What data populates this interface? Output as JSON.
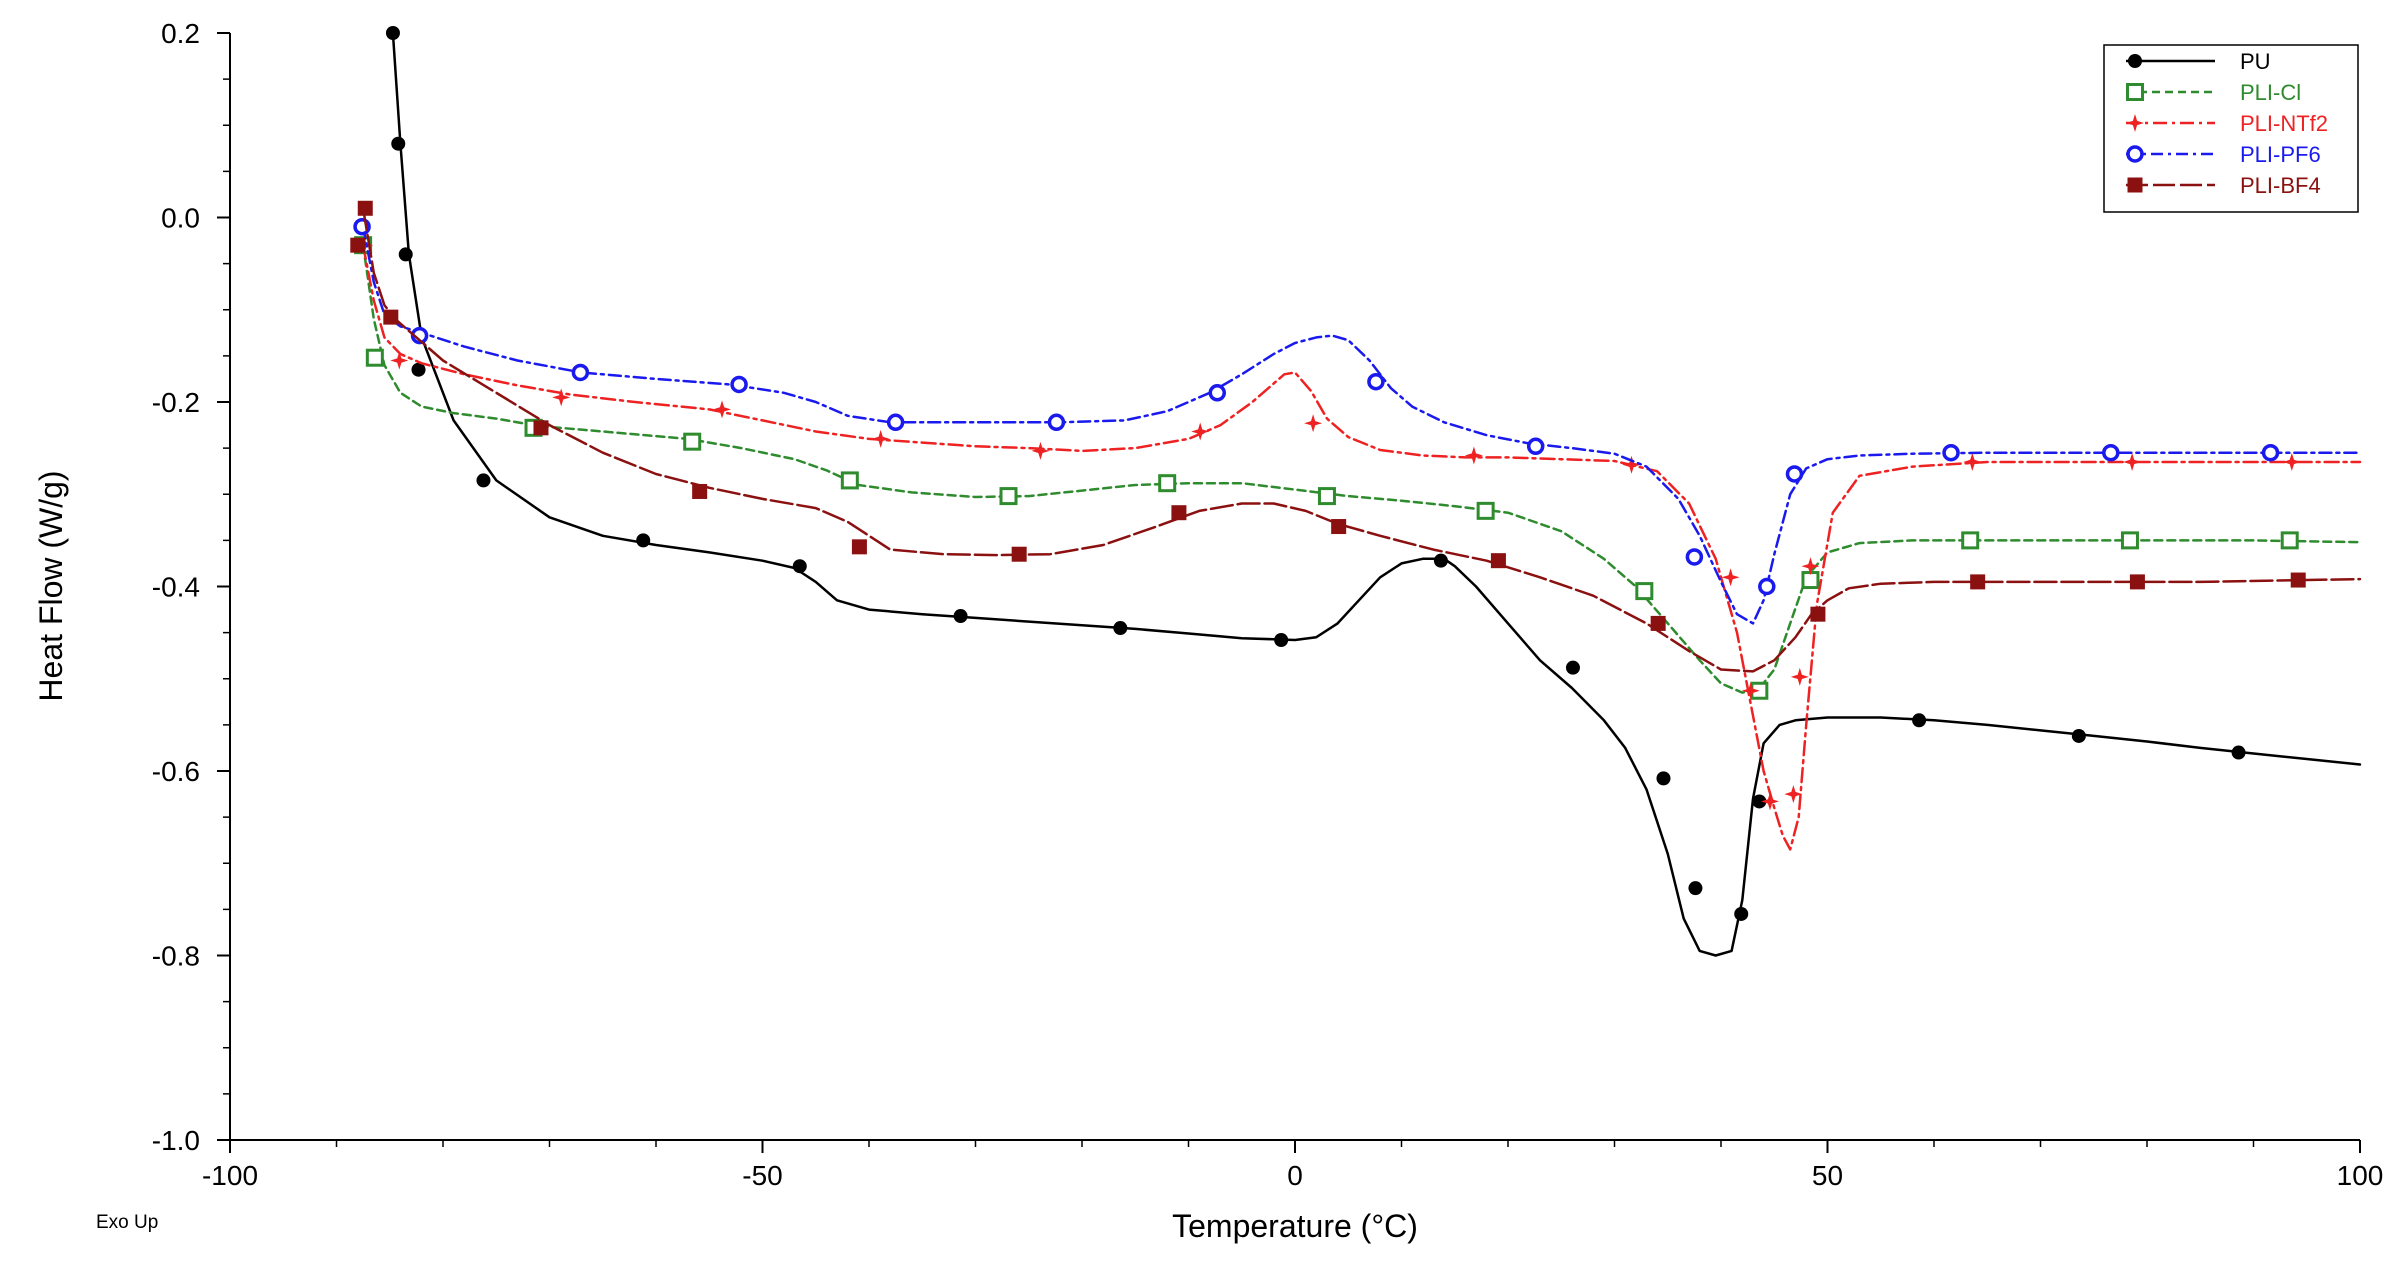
{
  "chart_data": {
    "type": "line",
    "title": "",
    "xlabel": "Temperature (°C)",
    "ylabel": "Heat Flow (W/g)",
    "note": "Exo Up",
    "xlim": [
      -100,
      100
    ],
    "ylim": [
      -1.0,
      0.2
    ],
    "xticks": [
      -100,
      -50,
      0,
      50,
      100
    ],
    "xtick_labels": [
      "-100",
      "-50",
      "0",
      "50",
      "100"
    ],
    "yticks": [
      0.2,
      0.0,
      -0.2,
      -0.4,
      -0.6,
      -0.8,
      -1.0
    ],
    "ytick_labels": [
      "0.2",
      "0.0",
      "-0.2",
      "-0.4",
      "-0.6",
      "-0.8",
      "-1.0"
    ],
    "legend_position": "top-right",
    "series": [
      {
        "name": "PU",
        "color": "#000000",
        "dash": "solid",
        "marker": "filled-circle",
        "x": [
          -84.7,
          -84.0,
          -83.2,
          -82.0,
          -79.0,
          -75.0,
          -70.0,
          -65.0,
          -60.0,
          -55.0,
          -50.0,
          -47.0,
          -45.0,
          -43.0,
          -40.0,
          -35.0,
          -30.0,
          -25.0,
          -20.0,
          -15.0,
          -10.0,
          -5.0,
          0.0,
          2.0,
          4.0,
          6.0,
          8.0,
          10.0,
          12.0,
          14.0,
          15.0,
          17.0,
          20.0,
          23.0,
          26.0,
          29.0,
          31.0,
          33.0,
          35.0,
          36.5,
          38.0,
          39.5,
          41.0,
          42.0,
          43.0,
          44.0,
          45.5,
          47.0,
          50.0,
          55.0,
          60.0,
          65.0,
          70.0,
          75.0,
          80.0,
          85.0,
          90.0,
          95.0,
          100.0
        ],
        "y": [
          0.2,
          0.08,
          -0.04,
          -0.13,
          -0.22,
          -0.285,
          -0.325,
          -0.345,
          -0.355,
          -0.363,
          -0.372,
          -0.38,
          -0.395,
          -0.415,
          -0.425,
          -0.43,
          -0.434,
          -0.438,
          -0.442,
          -0.446,
          -0.451,
          -0.456,
          -0.458,
          -0.455,
          -0.44,
          -0.415,
          -0.39,
          -0.375,
          -0.37,
          -0.37,
          -0.378,
          -0.4,
          -0.44,
          -0.48,
          -0.51,
          -0.545,
          -0.575,
          -0.62,
          -0.69,
          -0.76,
          -0.795,
          -0.8,
          -0.795,
          -0.74,
          -0.63,
          -0.57,
          -0.55,
          -0.545,
          -0.542,
          -0.542,
          -0.545,
          -0.55,
          -0.556,
          -0.562,
          -0.568,
          -0.575,
          -0.581,
          -0.587,
          -0.593
        ],
        "marker_x": [
          -84.7,
          -84.2,
          -83.5,
          -82.3,
          -76.2,
          -61.2,
          -46.5,
          -31.4,
          -16.4,
          -1.3,
          13.7,
          26.1,
          34.6,
          37.6,
          41.9,
          43.6,
          58.6,
          73.6,
          88.6
        ],
        "marker_y": [
          0.2,
          0.08,
          -0.04,
          -0.165,
          -0.285,
          -0.35,
          -0.378,
          -0.432,
          -0.445,
          -0.458,
          -0.372,
          -0.488,
          -0.608,
          -0.727,
          -0.755,
          -0.633,
          -0.545,
          -0.562,
          -0.58
        ]
      },
      {
        "name": "PLI-Cl",
        "color": "#2e8b2e",
        "dash": "8 5",
        "marker": "open-square",
        "x": [
          -87.5,
          -86.5,
          -85.5,
          -84.0,
          -82.0,
          -79.0,
          -75.0,
          -71.0,
          -65.0,
          -57.0,
          -52.0,
          -47.0,
          -44.0,
          -41.0,
          -36.0,
          -30.0,
          -25.0,
          -20.0,
          -15.0,
          -10.0,
          -5.0,
          0.0,
          5.0,
          10.0,
          15.0,
          20.0,
          25.0,
          29.0,
          32.0,
          35.0,
          38.0,
          40.0,
          42.0,
          43.5,
          45.0,
          46.5,
          48.0,
          50.0,
          53.0,
          58.0,
          65.0,
          70.0,
          80.0,
          90.0,
          100.0
        ],
        "y": [
          -0.03,
          -0.11,
          -0.16,
          -0.19,
          -0.205,
          -0.212,
          -0.218,
          -0.226,
          -0.232,
          -0.24,
          -0.25,
          -0.262,
          -0.274,
          -0.29,
          -0.298,
          -0.303,
          -0.302,
          -0.296,
          -0.29,
          -0.288,
          -0.288,
          -0.295,
          -0.302,
          -0.307,
          -0.313,
          -0.32,
          -0.34,
          -0.37,
          -0.4,
          -0.44,
          -0.48,
          -0.505,
          -0.515,
          -0.512,
          -0.49,
          -0.44,
          -0.39,
          -0.363,
          -0.353,
          -0.35,
          -0.35,
          -0.35,
          -0.35,
          -0.35,
          -0.352
        ],
        "marker_x": [
          -87.5,
          -86.4,
          -71.5,
          -56.6,
          -41.8,
          -26.9,
          -12.0,
          3.0,
          17.9,
          32.8,
          43.6,
          48.4,
          63.4,
          78.4,
          93.4
        ],
        "marker_y": [
          -0.03,
          -0.152,
          -0.228,
          -0.243,
          -0.285,
          -0.302,
          -0.288,
          -0.302,
          -0.318,
          -0.405,
          -0.513,
          -0.393,
          -0.35,
          -0.35,
          -0.35
        ]
      },
      {
        "name": "PLI-NTf2",
        "color": "#ee2222",
        "dash": "14 5 3 5",
        "marker": "star",
        "x": [
          -87.5,
          -86.5,
          -85.5,
          -84.0,
          -82.0,
          -78.0,
          -73.0,
          -68.0,
          -62.0,
          -55.0,
          -50.0,
          -45.0,
          -40.0,
          -35.0,
          -30.0,
          -25.0,
          -20.0,
          -15.0,
          -10.0,
          -7.0,
          -4.0,
          -2.0,
          -1.0,
          0.0,
          1.5,
          3.0,
          5.0,
          8.0,
          12.0,
          16.0,
          20.0,
          25.0,
          30.0,
          34.0,
          37.0,
          39.5,
          41.5,
          43.0,
          44.0,
          45.0,
          45.8,
          46.5,
          47.3,
          48.0,
          49.0,
          50.5,
          53.0,
          58.0,
          65.0,
          75.0,
          85.0,
          95.0,
          100.0
        ],
        "y": [
          -0.03,
          -0.09,
          -0.13,
          -0.148,
          -0.158,
          -0.17,
          -0.182,
          -0.192,
          -0.2,
          -0.208,
          -0.22,
          -0.232,
          -0.24,
          -0.244,
          -0.248,
          -0.25,
          -0.253,
          -0.25,
          -0.24,
          -0.225,
          -0.2,
          -0.18,
          -0.17,
          -0.168,
          -0.188,
          -0.218,
          -0.238,
          -0.252,
          -0.258,
          -0.26,
          -0.26,
          -0.262,
          -0.264,
          -0.275,
          -0.31,
          -0.37,
          -0.45,
          -0.54,
          -0.6,
          -0.64,
          -0.67,
          -0.685,
          -0.65,
          -0.55,
          -0.42,
          -0.32,
          -0.28,
          -0.27,
          -0.265,
          -0.265,
          -0.265,
          -0.265,
          -0.265
        ],
        "marker_x": [
          -87.4,
          -84.1,
          -68.9,
          -53.8,
          -38.9,
          -23.9,
          -8.9,
          1.7,
          16.8,
          31.6,
          40.9,
          42.8,
          44.6,
          46.8,
          47.4,
          48.4,
          63.6,
          78.6,
          93.6
        ],
        "marker_y": [
          -0.03,
          -0.155,
          -0.195,
          -0.208,
          -0.24,
          -0.253,
          -0.232,
          -0.223,
          -0.258,
          -0.268,
          -0.39,
          -0.513,
          -0.633,
          -0.625,
          -0.498,
          -0.378,
          -0.265,
          -0.265,
          -0.265
        ]
      },
      {
        "name": "PLI-PF6",
        "color": "#1a1aee",
        "dash": "12 5 3 5",
        "marker": "open-circle",
        "x": [
          -87.5,
          -86.5,
          -85.5,
          -84.0,
          -82.0,
          -78.0,
          -73.0,
          -67.0,
          -60.0,
          -53.0,
          -48.0,
          -45.0,
          -42.0,
          -38.0,
          -33.0,
          -28.0,
          -22.0,
          -16.0,
          -12.0,
          -8.0,
          -5.0,
          -2.0,
          0.0,
          2.0,
          3.5,
          5.0,
          7.0,
          9.0,
          11.0,
          14.0,
          18.0,
          22.0,
          26.0,
          30.0,
          33.0,
          36.0,
          38.0,
          40.0,
          41.5,
          43.0,
          44.0,
          45.0,
          46.5,
          48.0,
          50.0,
          53.0,
          58.0,
          65.0,
          75.0,
          85.0,
          95.0,
          100.0
        ],
        "y": [
          -0.01,
          -0.07,
          -0.105,
          -0.118,
          -0.125,
          -0.14,
          -0.155,
          -0.168,
          -0.175,
          -0.181,
          -0.19,
          -0.2,
          -0.215,
          -0.222,
          -0.222,
          -0.222,
          -0.222,
          -0.22,
          -0.21,
          -0.19,
          -0.17,
          -0.148,
          -0.136,
          -0.13,
          -0.128,
          -0.133,
          -0.155,
          -0.185,
          -0.205,
          -0.222,
          -0.236,
          -0.245,
          -0.25,
          -0.256,
          -0.27,
          -0.305,
          -0.345,
          -0.395,
          -0.43,
          -0.44,
          -0.415,
          -0.365,
          -0.3,
          -0.272,
          -0.262,
          -0.258,
          -0.256,
          -0.255,
          -0.255,
          -0.255,
          -0.255,
          -0.255
        ],
        "marker_x": [
          -87.6,
          -82.2,
          -67.1,
          -52.2,
          -37.5,
          -22.4,
          -7.3,
          7.6,
          22.6,
          37.5,
          44.3,
          46.9,
          61.6,
          76.6,
          91.6
        ],
        "marker_y": [
          -0.01,
          -0.128,
          -0.168,
          -0.181,
          -0.222,
          -0.222,
          -0.19,
          -0.178,
          -0.248,
          -0.368,
          -0.4,
          -0.278,
          -0.255,
          -0.255,
          -0.255
        ]
      },
      {
        "name": "PLI-BF4",
        "color": "#8b1010",
        "dash": "22 5",
        "marker": "filled-square",
        "x": [
          -87.5,
          -86.5,
          -85.5,
          -84.5,
          -83.0,
          -80.0,
          -75.0,
          -70.0,
          -65.0,
          -60.0,
          -55.0,
          -50.0,
          -45.0,
          -42.0,
          -38.0,
          -33.0,
          -28.0,
          -23.0,
          -18.0,
          -13.0,
          -9.0,
          -5.0,
          -2.0,
          1.0,
          4.0,
          8.0,
          13.0,
          18.0,
          23.0,
          28.0,
          33.0,
          37.0,
          40.0,
          43.0,
          45.0,
          47.0,
          48.5,
          50.0,
          52.0,
          55.0,
          60.0,
          65.0,
          75.0,
          85.0,
          95.0,
          100.0
        ],
        "y": [
          0.01,
          -0.06,
          -0.095,
          -0.11,
          -0.125,
          -0.155,
          -0.19,
          -0.225,
          -0.255,
          -0.278,
          -0.293,
          -0.305,
          -0.315,
          -0.33,
          -0.36,
          -0.365,
          -0.366,
          -0.365,
          -0.355,
          -0.335,
          -0.318,
          -0.31,
          -0.31,
          -0.318,
          -0.332,
          -0.345,
          -0.36,
          -0.372,
          -0.39,
          -0.41,
          -0.44,
          -0.47,
          -0.49,
          -0.492,
          -0.48,
          -0.455,
          -0.43,
          -0.415,
          -0.402,
          -0.397,
          -0.395,
          -0.395,
          -0.395,
          -0.395,
          -0.393,
          -0.392
        ],
        "marker_x": [
          -87.3,
          -88.0,
          -84.9,
          -70.8,
          -55.9,
          -40.9,
          -25.9,
          -10.9,
          4.1,
          19.1,
          34.1,
          49.1,
          64.1,
          79.1,
          94.2
        ],
        "marker_y": [
          0.01,
          -0.03,
          -0.108,
          -0.228,
          -0.297,
          -0.357,
          -0.365,
          -0.32,
          -0.335,
          -0.372,
          -0.44,
          -0.43,
          -0.395,
          -0.395,
          -0.393
        ]
      }
    ]
  }
}
